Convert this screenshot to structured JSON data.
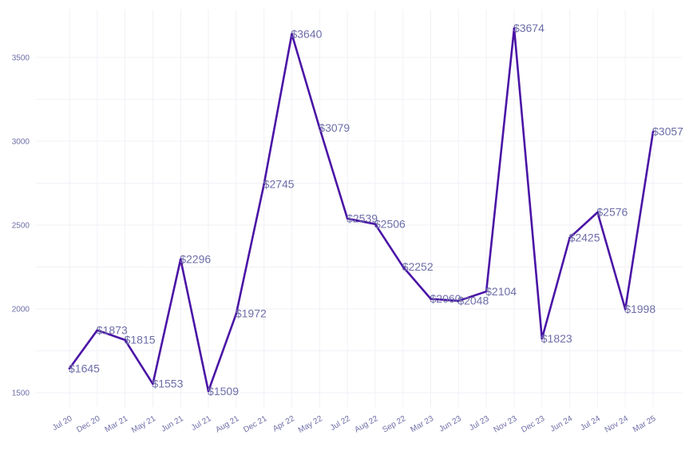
{
  "chart_data": {
    "type": "line",
    "title": "",
    "xlabel": "",
    "ylabel": "",
    "categories": [
      "Jul 20",
      "Dec 20",
      "Mar 21",
      "May 21",
      "Jun 21",
      "Jul 21",
      "Aug 21",
      "Dec 21",
      "Apr 22",
      "May 22",
      "Jul 22",
      "Aug 22",
      "Sep 22",
      "Mar 23",
      "Jun 23",
      "Jul 23",
      "Nov 23",
      "Dec 23",
      "Jun 24",
      "Jul 24",
      "Nov 24",
      "Mar 25"
    ],
    "values": [
      1645,
      1873,
      1815,
      1553,
      2296,
      1509,
      1972,
      2745,
      3640,
      3079,
      2539,
      2506,
      2252,
      2060,
      2048,
      2104,
      3674,
      1823,
      2425,
      2576,
      1998,
      3057
    ],
    "data_labels": [
      "$1645",
      "$1873",
      "$1815",
      "$1553",
      "$2296",
      "$1509",
      "$1972",
      "$2745",
      "$3640",
      "$3079",
      "$2539",
      "$2506",
      "$2252",
      "$2060",
      "$2048",
      "$2104",
      "$3674",
      "$1823",
      "$2425",
      "$2576",
      "$1998",
      "$3057"
    ],
    "yticks": [
      1500,
      2000,
      2500,
      3000,
      3500
    ],
    "ylim": [
      1420,
      3720
    ],
    "grid": true,
    "line_color": "#4a14a6",
    "text_color": "#6e6ea8"
  }
}
